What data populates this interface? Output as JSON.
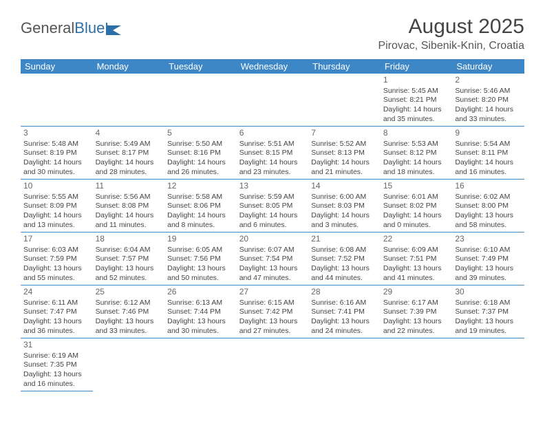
{
  "brand": {
    "part1": "General",
    "part2": "Blue"
  },
  "title": "August 2025",
  "location": "Pirovac, Sibenik-Knin, Croatia",
  "colors": {
    "header_bg": "#3d87c7",
    "header_fg": "#ffffff",
    "rule": "#3d87c7",
    "text": "#444444"
  },
  "weekdays": [
    "Sunday",
    "Monday",
    "Tuesday",
    "Wednesday",
    "Thursday",
    "Friday",
    "Saturday"
  ],
  "first_weekday_index": 5,
  "days": [
    {
      "n": 1,
      "sr": "5:45 AM",
      "ss": "8:21 PM",
      "dl": "14 hours and 35 minutes."
    },
    {
      "n": 2,
      "sr": "5:46 AM",
      "ss": "8:20 PM",
      "dl": "14 hours and 33 minutes."
    },
    {
      "n": 3,
      "sr": "5:48 AM",
      "ss": "8:19 PM",
      "dl": "14 hours and 30 minutes."
    },
    {
      "n": 4,
      "sr": "5:49 AM",
      "ss": "8:17 PM",
      "dl": "14 hours and 28 minutes."
    },
    {
      "n": 5,
      "sr": "5:50 AM",
      "ss": "8:16 PM",
      "dl": "14 hours and 26 minutes."
    },
    {
      "n": 6,
      "sr": "5:51 AM",
      "ss": "8:15 PM",
      "dl": "14 hours and 23 minutes."
    },
    {
      "n": 7,
      "sr": "5:52 AM",
      "ss": "8:13 PM",
      "dl": "14 hours and 21 minutes."
    },
    {
      "n": 8,
      "sr": "5:53 AM",
      "ss": "8:12 PM",
      "dl": "14 hours and 18 minutes."
    },
    {
      "n": 9,
      "sr": "5:54 AM",
      "ss": "8:11 PM",
      "dl": "14 hours and 16 minutes."
    },
    {
      "n": 10,
      "sr": "5:55 AM",
      "ss": "8:09 PM",
      "dl": "14 hours and 13 minutes."
    },
    {
      "n": 11,
      "sr": "5:56 AM",
      "ss": "8:08 PM",
      "dl": "14 hours and 11 minutes."
    },
    {
      "n": 12,
      "sr": "5:58 AM",
      "ss": "8:06 PM",
      "dl": "14 hours and 8 minutes."
    },
    {
      "n": 13,
      "sr": "5:59 AM",
      "ss": "8:05 PM",
      "dl": "14 hours and 6 minutes."
    },
    {
      "n": 14,
      "sr": "6:00 AM",
      "ss": "8:03 PM",
      "dl": "14 hours and 3 minutes."
    },
    {
      "n": 15,
      "sr": "6:01 AM",
      "ss": "8:02 PM",
      "dl": "14 hours and 0 minutes."
    },
    {
      "n": 16,
      "sr": "6:02 AM",
      "ss": "8:00 PM",
      "dl": "13 hours and 58 minutes."
    },
    {
      "n": 17,
      "sr": "6:03 AM",
      "ss": "7:59 PM",
      "dl": "13 hours and 55 minutes."
    },
    {
      "n": 18,
      "sr": "6:04 AM",
      "ss": "7:57 PM",
      "dl": "13 hours and 52 minutes."
    },
    {
      "n": 19,
      "sr": "6:05 AM",
      "ss": "7:56 PM",
      "dl": "13 hours and 50 minutes."
    },
    {
      "n": 20,
      "sr": "6:07 AM",
      "ss": "7:54 PM",
      "dl": "13 hours and 47 minutes."
    },
    {
      "n": 21,
      "sr": "6:08 AM",
      "ss": "7:52 PM",
      "dl": "13 hours and 44 minutes."
    },
    {
      "n": 22,
      "sr": "6:09 AM",
      "ss": "7:51 PM",
      "dl": "13 hours and 41 minutes."
    },
    {
      "n": 23,
      "sr": "6:10 AM",
      "ss": "7:49 PM",
      "dl": "13 hours and 39 minutes."
    },
    {
      "n": 24,
      "sr": "6:11 AM",
      "ss": "7:47 PM",
      "dl": "13 hours and 36 minutes."
    },
    {
      "n": 25,
      "sr": "6:12 AM",
      "ss": "7:46 PM",
      "dl": "13 hours and 33 minutes."
    },
    {
      "n": 26,
      "sr": "6:13 AM",
      "ss": "7:44 PM",
      "dl": "13 hours and 30 minutes."
    },
    {
      "n": 27,
      "sr": "6:15 AM",
      "ss": "7:42 PM",
      "dl": "13 hours and 27 minutes."
    },
    {
      "n": 28,
      "sr": "6:16 AM",
      "ss": "7:41 PM",
      "dl": "13 hours and 24 minutes."
    },
    {
      "n": 29,
      "sr": "6:17 AM",
      "ss": "7:39 PM",
      "dl": "13 hours and 22 minutes."
    },
    {
      "n": 30,
      "sr": "6:18 AM",
      "ss": "7:37 PM",
      "dl": "13 hours and 19 minutes."
    },
    {
      "n": 31,
      "sr": "6:19 AM",
      "ss": "7:35 PM",
      "dl": "13 hours and 16 minutes."
    }
  ],
  "labels": {
    "sunrise": "Sunrise:",
    "sunset": "Sunset:",
    "daylight": "Daylight:"
  }
}
